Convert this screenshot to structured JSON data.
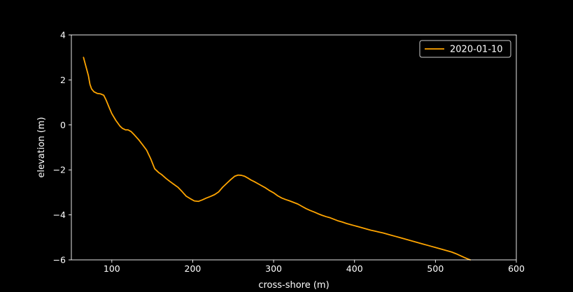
{
  "chart_data": {
    "type": "line",
    "title": "",
    "xlabel": "cross-shore (m)",
    "ylabel": "elevation (m)",
    "xlim": [
      50,
      600
    ],
    "ylim": [
      -6,
      4
    ],
    "x_ticks": [
      100,
      200,
      300,
      400,
      500,
      600
    ],
    "y_ticks": [
      4,
      2,
      0,
      -2,
      -4,
      -6
    ],
    "x_tick_labels": [
      "100",
      "200",
      "300",
      "400",
      "500",
      "600"
    ],
    "y_tick_labels": [
      "4",
      "2",
      "0",
      "−2",
      "−4",
      "−6"
    ],
    "grid": false,
    "legend_position": "top-right",
    "background_color": "#000000",
    "foreground_color": "#ffffff",
    "series": [
      {
        "name": "2020-01-10",
        "color": "#ffa500",
        "x": [
          65,
          68,
          71,
          73,
          75,
          78,
          82,
          86,
          90,
          93,
          97,
          100,
          105,
          110,
          113,
          117,
          120,
          124,
          128,
          133,
          138,
          143,
          148,
          153,
          158,
          162,
          167,
          172,
          177,
          182,
          187,
          192,
          197,
          202,
          207,
          212,
          217,
          222,
          227,
          232,
          237,
          242,
          247,
          252,
          256,
          260,
          264,
          268,
          272,
          276,
          280,
          285,
          290,
          295,
          300,
          305,
          310,
          315,
          320,
          325,
          330,
          335,
          340,
          345,
          350,
          355,
          360,
          365,
          370,
          375,
          380,
          385,
          390,
          395,
          400,
          405,
          410,
          415,
          420,
          425,
          430,
          435,
          440,
          445,
          450,
          455,
          460,
          465,
          470,
          475,
          480,
          485,
          490,
          495,
          500,
          505,
          510,
          515,
          520,
          525,
          530,
          535,
          540,
          543
        ],
        "y": [
          3.0,
          2.6,
          2.2,
          1.8,
          1.6,
          1.47,
          1.4,
          1.38,
          1.32,
          1.1,
          0.75,
          0.5,
          0.2,
          -0.05,
          -0.15,
          -0.22,
          -0.22,
          -0.3,
          -0.45,
          -0.65,
          -0.88,
          -1.12,
          -1.5,
          -1.95,
          -2.12,
          -2.22,
          -2.38,
          -2.52,
          -2.65,
          -2.78,
          -2.97,
          -3.17,
          -3.28,
          -3.38,
          -3.4,
          -3.33,
          -3.25,
          -3.18,
          -3.1,
          -2.98,
          -2.77,
          -2.6,
          -2.43,
          -2.28,
          -2.23,
          -2.24,
          -2.28,
          -2.36,
          -2.45,
          -2.52,
          -2.6,
          -2.7,
          -2.8,
          -2.92,
          -3.02,
          -3.15,
          -3.25,
          -3.32,
          -3.38,
          -3.45,
          -3.52,
          -3.62,
          -3.72,
          -3.8,
          -3.87,
          -3.95,
          -4.02,
          -4.08,
          -4.13,
          -4.2,
          -4.27,
          -4.32,
          -4.38,
          -4.43,
          -4.48,
          -4.53,
          -4.58,
          -4.63,
          -4.68,
          -4.72,
          -4.76,
          -4.8,
          -4.85,
          -4.9,
          -4.95,
          -5.0,
          -5.05,
          -5.1,
          -5.15,
          -5.2,
          -5.25,
          -5.3,
          -5.35,
          -5.4,
          -5.45,
          -5.5,
          -5.55,
          -5.6,
          -5.65,
          -5.72,
          -5.8,
          -5.88,
          -5.96,
          -6.0
        ]
      }
    ]
  }
}
